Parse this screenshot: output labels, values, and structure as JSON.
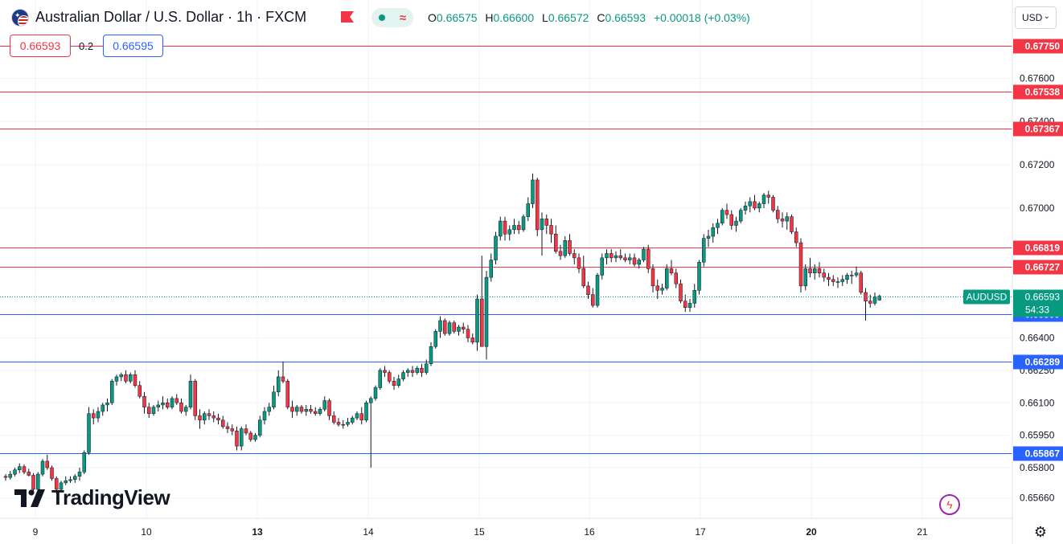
{
  "header": {
    "title": "Australian Dollar / U.S. Dollar · 1h · FXCM",
    "ohlc": [
      {
        "label": "O",
        "value": "0.66575"
      },
      {
        "label": "H",
        "value": "0.66600"
      },
      {
        "label": "L",
        "value": "0.66572"
      },
      {
        "label": "C",
        "value": "0.66593"
      }
    ],
    "change": "+0.00018 (+0.03%)",
    "bid": "0.66593",
    "ask": "0.66595",
    "spread": "0.2",
    "currency": "USD"
  },
  "brand": {
    "name": "TradingView"
  },
  "icons": {
    "flag": "au-us-flag-icon",
    "alert_flag": "red-flag-icon",
    "market_status": "market-open-dot-icon",
    "lightning": "lightning-icon",
    "settings": "gear-icon"
  },
  "colors": {
    "up": "#089981",
    "down": "#f23645",
    "resistance": "#f23645",
    "support": "#2962ff",
    "last_price": "#089981"
  },
  "chart_data": {
    "type": "candlestick",
    "symbol": "AUDUSD",
    "interval": "1h",
    "last_price": 0.66593,
    "countdown": "54:33",
    "y_axis": {
      "ticks": [
        "0.67750",
        "0.67600",
        "0.67400",
        "0.67200",
        "0.67000",
        "0.66400",
        "0.66250",
        "0.66100",
        "0.65950",
        "0.65800",
        "0.65660"
      ],
      "range": [
        0.6562,
        0.6786
      ]
    },
    "x_axis": {
      "labels": [
        {
          "label": "9",
          "bold": false
        },
        {
          "label": "10",
          "bold": false
        },
        {
          "label": "13",
          "bold": true
        },
        {
          "label": "14",
          "bold": false
        },
        {
          "label": "15",
          "bold": false
        },
        {
          "label": "16",
          "bold": false
        },
        {
          "label": "17",
          "bold": false
        },
        {
          "label": "20",
          "bold": true
        },
        {
          "label": "21",
          "bold": false
        }
      ]
    },
    "horizontal_lines": [
      {
        "value": 0.6775,
        "label": "0.67750",
        "kind": "resistance"
      },
      {
        "value": 0.67538,
        "label": "0.67538",
        "kind": "resistance"
      },
      {
        "value": 0.67367,
        "label": "0.67367",
        "kind": "resistance"
      },
      {
        "value": 0.66819,
        "label": "0.66819",
        "kind": "resistance"
      },
      {
        "value": 0.66727,
        "label": "0.66727",
        "kind": "resistance"
      },
      {
        "value": 0.66509,
        "label": "0.66509",
        "kind": "support"
      },
      {
        "value": 0.66289,
        "label": "0.66289",
        "kind": "support"
      },
      {
        "value": 0.65867,
        "label": "0.65867",
        "kind": "support"
      }
    ],
    "candles": [
      [
        0.6576,
        0.6577,
        0.6574,
        0.65755
      ],
      [
        0.65755,
        0.65785,
        0.65745,
        0.6577
      ],
      [
        0.6577,
        0.658,
        0.6576,
        0.6579
      ],
      [
        0.6579,
        0.6582,
        0.65775,
        0.65805
      ],
      [
        0.65805,
        0.65815,
        0.6577,
        0.6578
      ],
      [
        0.6578,
        0.65795,
        0.6576,
        0.65765
      ],
      [
        0.65765,
        0.65775,
        0.6568,
        0.657
      ],
      [
        0.657,
        0.6578,
        0.6569,
        0.6577
      ],
      [
        0.6577,
        0.6584,
        0.6576,
        0.6583
      ],
      [
        0.6583,
        0.6586,
        0.6579,
        0.658
      ],
      [
        0.658,
        0.6581,
        0.6574,
        0.6575
      ],
      [
        0.6575,
        0.6576,
        0.6568,
        0.657
      ],
      [
        0.657,
        0.6574,
        0.6569,
        0.6573
      ],
      [
        0.6573,
        0.6576,
        0.6572,
        0.6574
      ],
      [
        0.6574,
        0.6576,
        0.6573,
        0.65745
      ],
      [
        0.65745,
        0.6577,
        0.6573,
        0.6576
      ],
      [
        0.6576,
        0.658,
        0.6574,
        0.6578
      ],
      [
        0.6578,
        0.6588,
        0.6577,
        0.6587
      ],
      [
        0.6587,
        0.6608,
        0.6586,
        0.6605
      ],
      [
        0.6605,
        0.6607,
        0.66,
        0.6603
      ],
      [
        0.6603,
        0.6608,
        0.6601,
        0.6606
      ],
      [
        0.6606,
        0.661,
        0.6604,
        0.6609
      ],
      [
        0.6609,
        0.6612,
        0.6606,
        0.661
      ],
      [
        0.661,
        0.6621,
        0.6609,
        0.662
      ],
      [
        0.662,
        0.6623,
        0.6618,
        0.6622
      ],
      [
        0.6622,
        0.6624,
        0.662,
        0.6623
      ],
      [
        0.6623,
        0.6625,
        0.6619,
        0.662
      ],
      [
        0.662,
        0.6624,
        0.6619,
        0.6623
      ],
      [
        0.6623,
        0.6625,
        0.6617,
        0.6618
      ],
      [
        0.6618,
        0.662,
        0.6612,
        0.6613
      ],
      [
        0.6613,
        0.6615,
        0.6605,
        0.6608
      ],
      [
        0.6608,
        0.661,
        0.6603,
        0.6605
      ],
      [
        0.6605,
        0.6609,
        0.6604,
        0.6608
      ],
      [
        0.6608,
        0.6611,
        0.6606,
        0.6609
      ],
      [
        0.6609,
        0.6613,
        0.6607,
        0.661
      ],
      [
        0.661,
        0.6612,
        0.6607,
        0.6608
      ],
      [
        0.6608,
        0.6613,
        0.6607,
        0.6612
      ],
      [
        0.6612,
        0.6614,
        0.6609,
        0.661
      ],
      [
        0.661,
        0.6612,
        0.6605,
        0.6606
      ],
      [
        0.6606,
        0.6609,
        0.6604,
        0.6608
      ],
      [
        0.6608,
        0.6623,
        0.6607,
        0.662
      ],
      [
        0.662,
        0.6621,
        0.6602,
        0.6604
      ],
      [
        0.6604,
        0.6607,
        0.6598,
        0.6602
      ],
      [
        0.6602,
        0.6606,
        0.66,
        0.6605
      ],
      [
        0.6605,
        0.6607,
        0.6602,
        0.6604
      ],
      [
        0.6604,
        0.6606,
        0.6601,
        0.6603
      ],
      [
        0.6603,
        0.6605,
        0.66,
        0.6602
      ],
      [
        0.6602,
        0.6604,
        0.6598,
        0.6599
      ],
      [
        0.6599,
        0.6601,
        0.6596,
        0.6598
      ],
      [
        0.6598,
        0.66,
        0.6595,
        0.6597
      ],
      [
        0.6597,
        0.6599,
        0.6588,
        0.659
      ],
      [
        0.659,
        0.6599,
        0.6588,
        0.6598
      ],
      [
        0.6598,
        0.66,
        0.6595,
        0.6596
      ],
      [
        0.6596,
        0.6597,
        0.6592,
        0.6593
      ],
      [
        0.6593,
        0.6596,
        0.6592,
        0.6595
      ],
      [
        0.6595,
        0.6604,
        0.6594,
        0.6602
      ],
      [
        0.6602,
        0.6608,
        0.66,
        0.6606
      ],
      [
        0.6606,
        0.661,
        0.6604,
        0.6608
      ],
      [
        0.6608,
        0.6618,
        0.6607,
        0.6615
      ],
      [
        0.6615,
        0.6625,
        0.6613,
        0.6622
      ],
      [
        0.6622,
        0.6629,
        0.6619,
        0.662
      ],
      [
        0.662,
        0.6621,
        0.6607,
        0.6608
      ],
      [
        0.6608,
        0.6611,
        0.6603,
        0.6606
      ],
      [
        0.6606,
        0.6609,
        0.6604,
        0.6608
      ],
      [
        0.6608,
        0.6609,
        0.6605,
        0.6606
      ],
      [
        0.6606,
        0.6609,
        0.6604,
        0.6607
      ],
      [
        0.6607,
        0.6609,
        0.6605,
        0.6606
      ],
      [
        0.6606,
        0.6608,
        0.6604,
        0.6605
      ],
      [
        0.6605,
        0.6608,
        0.6604,
        0.6607
      ],
      [
        0.6607,
        0.6613,
        0.6606,
        0.6611
      ],
      [
        0.6611,
        0.6612,
        0.6602,
        0.6604
      ],
      [
        0.6604,
        0.6606,
        0.66,
        0.6601
      ],
      [
        0.6601,
        0.6603,
        0.6599,
        0.66
      ],
      [
        0.66,
        0.6602,
        0.6598,
        0.66
      ],
      [
        0.66,
        0.6603,
        0.6599,
        0.6601
      ],
      [
        0.6601,
        0.6604,
        0.66,
        0.6603
      ],
      [
        0.6603,
        0.6606,
        0.6602,
        0.6605
      ],
      [
        0.6605,
        0.6608,
        0.66,
        0.6602
      ],
      [
        0.6602,
        0.6611,
        0.6601,
        0.661
      ],
      [
        0.661,
        0.6613,
        0.658,
        0.6612
      ],
      [
        0.6612,
        0.6618,
        0.6611,
        0.6617
      ],
      [
        0.6617,
        0.6626,
        0.6616,
        0.6625
      ],
      [
        0.6625,
        0.6627,
        0.6622,
        0.6624
      ],
      [
        0.6624,
        0.6625,
        0.6619,
        0.662
      ],
      [
        0.662,
        0.6622,
        0.6616,
        0.6618
      ],
      [
        0.6618,
        0.6623,
        0.6617,
        0.6621
      ],
      [
        0.6621,
        0.6625,
        0.662,
        0.6624
      ],
      [
        0.6624,
        0.6626,
        0.6622,
        0.6625
      ],
      [
        0.6625,
        0.6627,
        0.6622,
        0.6624
      ],
      [
        0.6624,
        0.6627,
        0.6623,
        0.6626
      ],
      [
        0.6626,
        0.6628,
        0.6622,
        0.6624
      ],
      [
        0.6624,
        0.663,
        0.6623,
        0.6628
      ],
      [
        0.6628,
        0.6638,
        0.6627,
        0.6636
      ],
      [
        0.6636,
        0.6644,
        0.6635,
        0.6643
      ],
      [
        0.6643,
        0.665,
        0.664,
        0.6648
      ],
      [
        0.6648,
        0.6649,
        0.6641,
        0.6642
      ],
      [
        0.6642,
        0.6648,
        0.6641,
        0.6647
      ],
      [
        0.6647,
        0.6648,
        0.6642,
        0.6643
      ],
      [
        0.6643,
        0.6646,
        0.6641,
        0.6645
      ],
      [
        0.6645,
        0.6647,
        0.6642,
        0.6644
      ],
      [
        0.6644,
        0.6646,
        0.6638,
        0.664
      ],
      [
        0.664,
        0.6642,
        0.6637,
        0.6638
      ],
      [
        0.6638,
        0.666,
        0.6634,
        0.6658
      ],
      [
        0.6658,
        0.6678,
        0.6636,
        0.6636
      ],
      [
        0.6636,
        0.6671,
        0.663,
        0.6668
      ],
      [
        0.6668,
        0.6679,
        0.6666,
        0.6676
      ],
      [
        0.6676,
        0.6689,
        0.6674,
        0.6687
      ],
      [
        0.6687,
        0.6696,
        0.6685,
        0.6694
      ],
      [
        0.6694,
        0.6696,
        0.6685,
        0.6688
      ],
      [
        0.6688,
        0.6692,
        0.6685,
        0.669
      ],
      [
        0.669,
        0.6695,
        0.6688,
        0.6692
      ],
      [
        0.6692,
        0.6694,
        0.6688,
        0.669
      ],
      [
        0.669,
        0.6697,
        0.6689,
        0.6696
      ],
      [
        0.6696,
        0.6705,
        0.6694,
        0.6702
      ],
      [
        0.6702,
        0.6716,
        0.67,
        0.6713
      ],
      [
        0.6713,
        0.6714,
        0.6687,
        0.669
      ],
      [
        0.669,
        0.6698,
        0.6678,
        0.6695
      ],
      [
        0.6695,
        0.6697,
        0.6688,
        0.6692
      ],
      [
        0.6692,
        0.6695,
        0.6684,
        0.6688
      ],
      [
        0.6688,
        0.6692,
        0.6679,
        0.668
      ],
      [
        0.668,
        0.6683,
        0.6676,
        0.6678
      ],
      [
        0.6678,
        0.6687,
        0.6677,
        0.6685
      ],
      [
        0.6685,
        0.6688,
        0.6678,
        0.6679
      ],
      [
        0.6679,
        0.6681,
        0.6674,
        0.6677
      ],
      [
        0.6677,
        0.6679,
        0.667,
        0.6672
      ],
      [
        0.6672,
        0.6678,
        0.6663,
        0.6664
      ],
      [
        0.6664,
        0.6666,
        0.6658,
        0.666
      ],
      [
        0.666,
        0.6663,
        0.6654,
        0.6655
      ],
      [
        0.6655,
        0.667,
        0.6654,
        0.6669
      ],
      [
        0.6669,
        0.6679,
        0.6667,
        0.6677
      ],
      [
        0.6677,
        0.6681,
        0.6674,
        0.6679
      ],
      [
        0.6679,
        0.6681,
        0.6675,
        0.6677
      ],
      [
        0.6677,
        0.668,
        0.6675,
        0.6678
      ],
      [
        0.6678,
        0.6681,
        0.6676,
        0.6677
      ],
      [
        0.6677,
        0.6679,
        0.6675,
        0.6676
      ],
      [
        0.6676,
        0.6679,
        0.6674,
        0.6677
      ],
      [
        0.6677,
        0.6679,
        0.6673,
        0.6674
      ],
      [
        0.6674,
        0.6677,
        0.6672,
        0.6676
      ],
      [
        0.6676,
        0.6682,
        0.6675,
        0.6681
      ],
      [
        0.6681,
        0.6683,
        0.667,
        0.6672
      ],
      [
        0.6672,
        0.6674,
        0.6661,
        0.6664
      ],
      [
        0.6664,
        0.6667,
        0.6658,
        0.6662
      ],
      [
        0.6662,
        0.6665,
        0.666,
        0.6663
      ],
      [
        0.6663,
        0.6674,
        0.6662,
        0.6672
      ],
      [
        0.6672,
        0.6676,
        0.6669,
        0.667
      ],
      [
        0.667,
        0.6672,
        0.6663,
        0.6665
      ],
      [
        0.6665,
        0.6667,
        0.6656,
        0.6657
      ],
      [
        0.6657,
        0.666,
        0.6652,
        0.6654
      ],
      [
        0.6654,
        0.6658,
        0.6652,
        0.6656
      ],
      [
        0.6656,
        0.6665,
        0.6654,
        0.6662
      ],
      [
        0.6662,
        0.6676,
        0.666,
        0.6675
      ],
      [
        0.6675,
        0.6688,
        0.6673,
        0.6686
      ],
      [
        0.6686,
        0.669,
        0.6682,
        0.6687
      ],
      [
        0.6687,
        0.6693,
        0.6684,
        0.6691
      ],
      [
        0.6691,
        0.6695,
        0.6688,
        0.6693
      ],
      [
        0.6693,
        0.67,
        0.6692,
        0.6699
      ],
      [
        0.6699,
        0.6702,
        0.6695,
        0.6697
      ],
      [
        0.6697,
        0.6699,
        0.669,
        0.6692
      ],
      [
        0.6692,
        0.6696,
        0.6689,
        0.6694
      ],
      [
        0.6694,
        0.67,
        0.6693,
        0.6699
      ],
      [
        0.6699,
        0.6703,
        0.6697,
        0.6701
      ],
      [
        0.6701,
        0.6705,
        0.6698,
        0.6703
      ],
      [
        0.6703,
        0.6706,
        0.6699,
        0.67
      ],
      [
        0.67,
        0.6703,
        0.6698,
        0.6702
      ],
      [
        0.6702,
        0.6707,
        0.67,
        0.6706
      ],
      [
        0.6706,
        0.6708,
        0.6702,
        0.6705
      ],
      [
        0.6705,
        0.6706,
        0.6698,
        0.6699
      ],
      [
        0.6699,
        0.6701,
        0.6693,
        0.6695
      ],
      [
        0.6695,
        0.6698,
        0.6691,
        0.6694
      ],
      [
        0.6694,
        0.6698,
        0.669,
        0.6696
      ],
      [
        0.6696,
        0.6697,
        0.6688,
        0.6689
      ],
      [
        0.6689,
        0.6691,
        0.6682,
        0.6684
      ],
      [
        0.6684,
        0.6686,
        0.6661,
        0.6664
      ],
      [
        0.6664,
        0.6674,
        0.6662,
        0.6672
      ],
      [
        0.6672,
        0.6677,
        0.6668,
        0.667
      ],
      [
        0.667,
        0.6674,
        0.6667,
        0.6672
      ],
      [
        0.6672,
        0.6675,
        0.6668,
        0.667
      ],
      [
        0.667,
        0.6672,
        0.6666,
        0.6668
      ],
      [
        0.6668,
        0.667,
        0.6664,
        0.6667
      ],
      [
        0.6667,
        0.6669,
        0.6664,
        0.6666
      ],
      [
        0.6666,
        0.6668,
        0.6663,
        0.6666
      ],
      [
        0.6666,
        0.6669,
        0.6664,
        0.6667
      ],
      [
        0.6667,
        0.667,
        0.6665,
        0.6669
      ],
      [
        0.6669,
        0.6671,
        0.6665,
        0.6669
      ],
      [
        0.6669,
        0.6673,
        0.6668,
        0.667
      ],
      [
        0.667,
        0.6671,
        0.666,
        0.6661
      ],
      [
        0.6661,
        0.6663,
        0.6648,
        0.6657
      ],
      [
        0.6657,
        0.666,
        0.6654,
        0.6656
      ],
      [
        0.6656,
        0.6661,
        0.6655,
        0.6659
      ],
      [
        0.66575,
        0.666,
        0.66572,
        0.66593
      ]
    ]
  }
}
